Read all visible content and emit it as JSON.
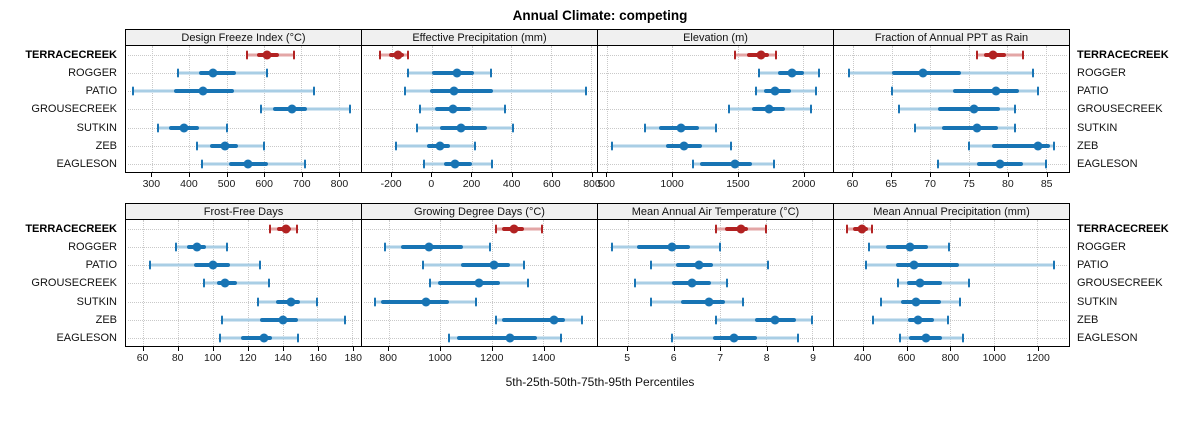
{
  "title": "Annual Climate: competing",
  "caption": "5th-25th-50th-75th-95th Percentiles",
  "sites": [
    "TERRACECREEK",
    "ROGGER",
    "PATIO",
    "GROUSECREEK",
    "SUTKIN",
    "ZEB",
    "EAGLESON"
  ],
  "highlight_site": "TERRACECREEK",
  "colors": {
    "highlight_dark": "#B22222",
    "highlight_light": "#E3A6A6",
    "normal_dark": "#1874B4",
    "normal_light": "#A9CEE5",
    "strip_bg": "#F0F0F0",
    "gridline": "#C9C9C9"
  },
  "chart_data": {
    "type": "table",
    "subtype": "percentile-dotplot-trellis",
    "percentile_labels": [
      "5th",
      "25th",
      "50th",
      "75th",
      "95th"
    ],
    "layout": "2 rows x 4 columns of panels, shared site axis",
    "panels": [
      {
        "title": "Design Freeze Index (°C)",
        "grid_row": 0,
        "grid_col": 0,
        "domain": [
          230,
          860
        ],
        "ticks": [
          300,
          400,
          500,
          600,
          700,
          800
        ],
        "values": {
          "TERRACECREEK": [
            555,
            580,
            608,
            640,
            680
          ],
          "ROGGER": [
            370,
            425,
            463,
            525,
            608
          ],
          "PATIO": [
            250,
            360,
            437,
            520,
            735
          ],
          "GROUSECREEK": [
            593,
            625,
            675,
            716,
            830
          ],
          "SUTKIN": [
            315,
            345,
            385,
            425,
            500
          ],
          "ZEB": [
            420,
            455,
            495,
            530,
            600
          ],
          "EAGLESON": [
            435,
            505,
            558,
            610,
            710
          ]
        }
      },
      {
        "title": "Effective Precipitation (mm)",
        "grid_row": 0,
        "grid_col": 1,
        "domain": [
          -350,
          830
        ],
        "ticks": [
          -200,
          0,
          200,
          400,
          600,
          800
        ],
        "values": {
          "TERRACECREEK": [
            -260,
            -215,
            -170,
            -140,
            -118
          ],
          "ROGGER": [
            -120,
            0,
            125,
            210,
            300
          ],
          "PATIO": [
            -135,
            -10,
            110,
            310,
            775
          ],
          "GROUSECREEK": [
            -60,
            15,
            105,
            195,
            370
          ],
          "SUTKIN": [
            -75,
            40,
            145,
            280,
            410
          ],
          "ZEB": [
            -180,
            -25,
            40,
            90,
            215
          ],
          "EAGLESON": [
            -40,
            60,
            115,
            200,
            305
          ]
        }
      },
      {
        "title": "Elevation (m)",
        "grid_row": 0,
        "grid_col": 2,
        "domain": [
          430,
          2230
        ],
        "ticks": [
          500,
          1000,
          1500,
          2000
        ],
        "values": {
          "TERRACECREEK": [
            1480,
            1570,
            1680,
            1740,
            1795
          ],
          "ROGGER": [
            1660,
            1805,
            1915,
            2010,
            2120
          ],
          "PATIO": [
            1640,
            1700,
            1785,
            1905,
            2100
          ],
          "GROUSECREEK": [
            1430,
            1610,
            1740,
            1860,
            2060
          ],
          "SUTKIN": [
            790,
            900,
            1065,
            1200,
            1330
          ],
          "ZEB": [
            540,
            950,
            1090,
            1230,
            1450
          ],
          "EAGLESON": [
            1155,
            1210,
            1480,
            1610,
            1775
          ]
        }
      },
      {
        "title": "Fraction of Annual PPT as Rain",
        "grid_row": 0,
        "grid_col": 3,
        "domain": [
          57.5,
          88
        ],
        "ticks": [
          60,
          65,
          70,
          75,
          80,
          85
        ],
        "values": {
          "TERRACECREEK": [
            76,
            77,
            78.2,
            79.8,
            82
          ],
          "ROGGER": [
            59.5,
            65,
            69,
            74,
            83.3
          ],
          "PATIO": [
            65,
            73,
            78.5,
            81.5,
            84
          ],
          "GROUSECREEK": [
            66,
            71,
            75.7,
            79,
            81
          ],
          "SUTKIN": [
            68,
            71.5,
            76,
            78.8,
            81
          ],
          "ZEB": [
            75,
            78,
            84,
            85.5,
            86
          ],
          "EAGLESON": [
            71,
            76,
            79,
            82,
            85
          ]
        }
      },
      {
        "title": "Frost-Free Days",
        "grid_row": 1,
        "grid_col": 0,
        "domain": [
          50,
          185
        ],
        "ticks": [
          60,
          80,
          100,
          120,
          140,
          160,
          180
        ],
        "values": {
          "TERRACECREEK": [
            133,
            137,
            142,
            145,
            148
          ],
          "ROGGER": [
            79,
            85,
            91,
            96,
            108
          ],
          "PATIO": [
            64,
            89,
            100,
            110,
            127
          ],
          "GROUSECREEK": [
            95,
            102,
            107,
            114,
            132
          ],
          "SUTKIN": [
            126,
            136,
            145,
            150,
            160
          ],
          "ZEB": [
            105,
            127,
            140,
            149,
            176
          ],
          "EAGLESON": [
            104,
            116,
            129,
            134,
            149
          ]
        }
      },
      {
        "title": "Growing Degree Days (°C)",
        "grid_row": 1,
        "grid_col": 1,
        "domain": [
          695,
          1610
        ],
        "ticks": [
          800,
          1000,
          1200,
          1400
        ],
        "values": {
          "TERRACECREEK": [
            1218,
            1240,
            1286,
            1325,
            1397
          ],
          "ROGGER": [
            786,
            845,
            957,
            1090,
            1195
          ],
          "PATIO": [
            932,
            1080,
            1208,
            1273,
            1327
          ],
          "GROUSECREEK": [
            961,
            990,
            1149,
            1234,
            1340
          ],
          "SUTKIN": [
            747,
            770,
            945,
            1032,
            1140
          ],
          "ZEB": [
            1218,
            1240,
            1444,
            1487,
            1552
          ],
          "EAGLESON": [
            1032,
            1065,
            1273,
            1377,
            1468
          ]
        }
      },
      {
        "title": "Mean Annual Air Temperature (°C)",
        "grid_row": 1,
        "grid_col": 2,
        "domain": [
          4.35,
          9.45
        ],
        "ticks": [
          5,
          6,
          7,
          8,
          9
        ],
        "values": {
          "TERRACECREEK": [
            6.9,
            7.1,
            7.45,
            7.6,
            8.0
          ],
          "ROGGER": [
            4.65,
            5.2,
            5.95,
            6.35,
            7.0
          ],
          "PATIO": [
            5.5,
            6.05,
            6.55,
            6.85,
            8.05
          ],
          "GROUSECREEK": [
            5.15,
            5.95,
            6.4,
            6.8,
            7.15
          ],
          "SUTKIN": [
            5.5,
            6.15,
            6.75,
            7.1,
            7.5
          ],
          "ZEB": [
            6.9,
            7.75,
            8.2,
            8.65,
            9.0
          ],
          "EAGLESON": [
            5.95,
            6.85,
            7.3,
            7.8,
            8.7
          ]
        }
      },
      {
        "title": "Mean Annual Precipitation (mm)",
        "grid_row": 1,
        "grid_col": 3,
        "domain": [
          265,
          1345
        ],
        "ticks": [
          400,
          600,
          800,
          1000,
          1200
        ],
        "values": {
          "TERRACECREEK": [
            325,
            352,
            392,
            420,
            440
          ],
          "ROGGER": [
            425,
            505,
            612,
            695,
            795
          ],
          "PATIO": [
            412,
            550,
            632,
            840,
            1278
          ],
          "GROUSECREEK": [
            558,
            600,
            660,
            760,
            885
          ],
          "SUTKIN": [
            482,
            575,
            640,
            755,
            845
          ],
          "ZEB": [
            445,
            605,
            650,
            725,
            790
          ],
          "EAGLESON": [
            570,
            610,
            690,
            760,
            856
          ]
        }
      }
    ]
  }
}
